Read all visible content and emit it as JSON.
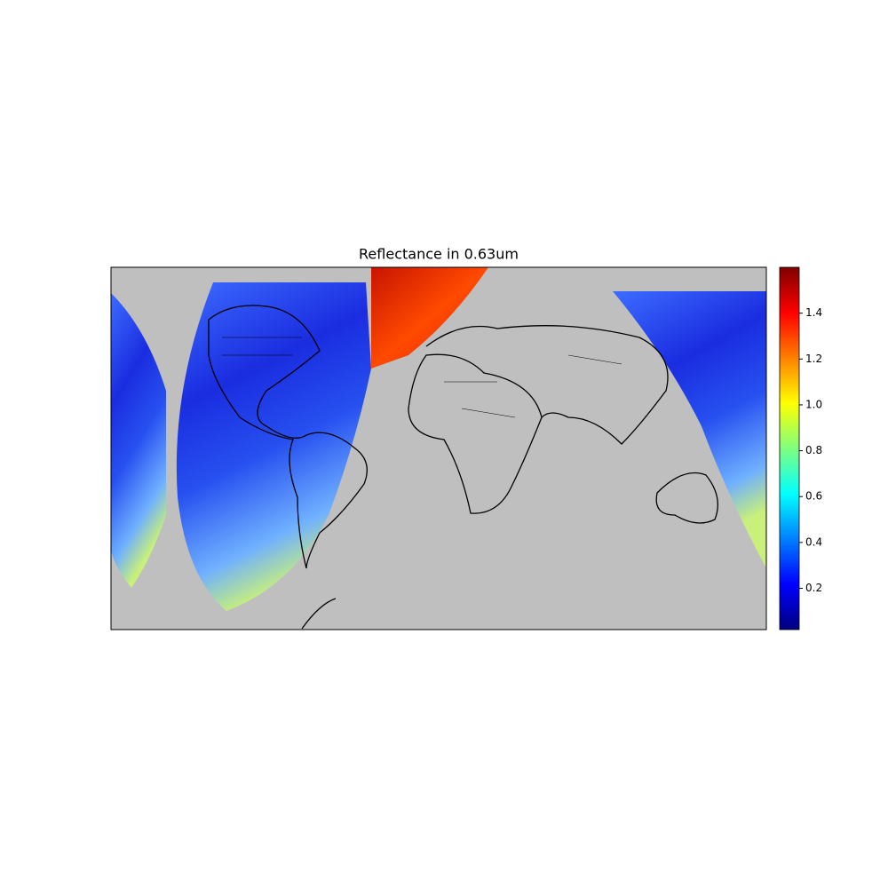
{
  "chart_data": {
    "type": "map",
    "title": "Reflectance in 0.63um",
    "colorbar": {
      "colormap": "jet",
      "clim": [
        0.02,
        1.6
      ],
      "ticks": [
        0.2,
        0.4,
        0.6,
        0.8,
        {
          "value": 1,
          "label": "1.0"
        },
        1.2,
        1.4
      ]
    }
  }
}
